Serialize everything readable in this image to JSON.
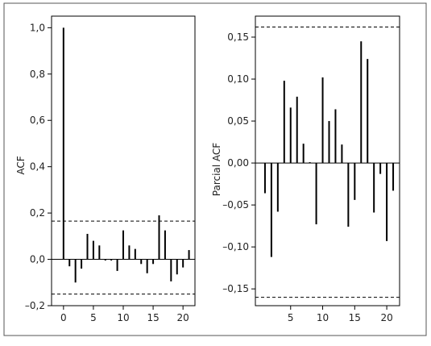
{
  "chart_data": [
    {
      "type": "bar",
      "title": "",
      "xlabel": "",
      "ylabel": "ACF",
      "xlim": [
        -2,
        22
      ],
      "ylim": [
        -0.2,
        1.05
      ],
      "x_ticks": [
        "0",
        "5",
        "10",
        "15",
        "20"
      ],
      "x_tick_values": [
        0,
        5,
        10,
        15,
        20
      ],
      "y_ticks": [
        "1,0",
        "0,8",
        "0,6",
        "0,4",
        "0,2",
        "0,0",
        "–0,2"
      ],
      "y_tick_values": [
        1.0,
        0.8,
        0.6,
        0.4,
        0.2,
        0.0,
        -0.2
      ],
      "confidence_bounds": [
        0.165,
        -0.15
      ],
      "x": [
        0,
        1,
        2,
        3,
        4,
        5,
        6,
        7,
        8,
        9,
        10,
        11,
        12,
        13,
        14,
        15,
        16,
        17,
        18,
        19,
        20,
        21
      ],
      "values": [
        1.0,
        -0.03,
        -0.1,
        -0.04,
        0.11,
        0.08,
        0.06,
        -0.005,
        -0.005,
        -0.05,
        0.125,
        0.06,
        0.045,
        -0.02,
        -0.06,
        -0.02,
        0.19,
        0.125,
        -0.095,
        -0.065,
        -0.035,
        0.04
      ],
      "grid": false
    },
    {
      "type": "bar",
      "title": "",
      "xlabel": "",
      "ylabel": "Parcial ACF",
      "xlim": [
        -0.5,
        22
      ],
      "ylim": [
        -0.17,
        0.175
      ],
      "x_ticks": [
        "5",
        "10",
        "15",
        "20"
      ],
      "x_tick_values": [
        5,
        10,
        15,
        20
      ],
      "y_ticks": [
        "0,15",
        "0,10",
        "0,05",
        "0,00",
        "–0,05",
        "–0,10",
        "–0,15"
      ],
      "y_tick_values": [
        0.15,
        0.1,
        0.05,
        0.0,
        -0.05,
        -0.1,
        -0.15
      ],
      "confidence_bounds": [
        0.162,
        -0.16
      ],
      "x": [
        1,
        2,
        3,
        4,
        5,
        6,
        7,
        8,
        9,
        10,
        11,
        12,
        13,
        14,
        15,
        16,
        17,
        18,
        19,
        20,
        21
      ],
      "values": [
        -0.036,
        -0.112,
        -0.058,
        0.098,
        0.066,
        0.079,
        0.023,
        0.001,
        -0.073,
        0.102,
        0.05,
        0.064,
        0.022,
        -0.076,
        -0.044,
        0.145,
        0.124,
        -0.059,
        -0.013,
        -0.093,
        -0.033
      ],
      "grid": false
    }
  ],
  "colors": {
    "bars": "#000000",
    "frame": "#000000",
    "outer_border": "#555555",
    "background": "#ffffff"
  }
}
